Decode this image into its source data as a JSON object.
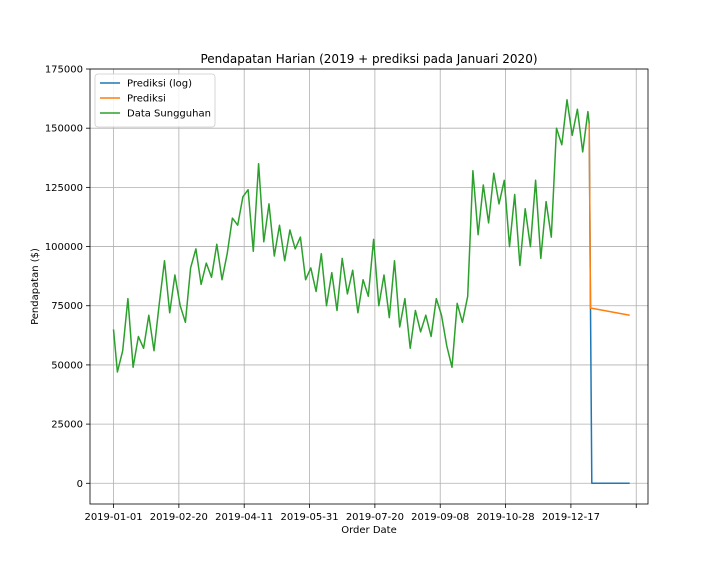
{
  "chart_data": {
    "type": "line",
    "title": "Pendapatan Harian (2019 + prediksi pada Januari 2020)",
    "xlabel": "Order Date",
    "ylabel": "Pendapatan ($)",
    "xlim": [
      "2018-12-14",
      "2020-02-14"
    ],
    "ylim": [
      -8750,
      175000
    ],
    "x_ticks": [
      "2019-01-01",
      "2019-02-20",
      "2019-04-11",
      "2019-05-31",
      "2019-07-20",
      "2019-09-08",
      "2019-10-28",
      "2019-12-17",
      "2020-02-05"
    ],
    "x_tick_labels": [
      "2019-01-01",
      "2019-02-20",
      "2019-04-11",
      "2019-05-31",
      "2019-07-20",
      "2019-09-08",
      "2019-10-28",
      "2019-12-17",
      ""
    ],
    "y_ticks": [
      0,
      25000,
      50000,
      75000,
      100000,
      125000,
      150000,
      175000
    ],
    "grid": true,
    "legend_position": "top-left",
    "series": [
      {
        "name": "Prediksi (log)",
        "color": "#1f77b4",
        "x": [
          "2019-12-31",
          "2020-01-01",
          "2020-01-02",
          "2020-01-31"
        ],
        "y": [
          152000,
          74000,
          0,
          0
        ]
      },
      {
        "name": "Prediksi",
        "color": "#ff7f0e",
        "x": [
          "2019-12-31",
          "2020-01-01",
          "2020-01-02",
          "2020-01-31"
        ],
        "y": [
          152000,
          74000,
          73900,
          71000
        ]
      },
      {
        "name": "Data Sungguhan",
        "color": "#2ca02c",
        "x": [
          "2019-01-01",
          "2019-01-04",
          "2019-01-08",
          "2019-01-12",
          "2019-01-16",
          "2019-01-20",
          "2019-01-24",
          "2019-01-28",
          "2019-02-01",
          "2019-02-05",
          "2019-02-09",
          "2019-02-13",
          "2019-02-17",
          "2019-02-21",
          "2019-02-25",
          "2019-03-01",
          "2019-03-05",
          "2019-03-09",
          "2019-03-13",
          "2019-03-17",
          "2019-03-21",
          "2019-03-25",
          "2019-03-29",
          "2019-04-02",
          "2019-04-06",
          "2019-04-10",
          "2019-04-14",
          "2019-04-18",
          "2019-04-22",
          "2019-04-26",
          "2019-04-30",
          "2019-05-04",
          "2019-05-08",
          "2019-05-12",
          "2019-05-16",
          "2019-05-20",
          "2019-05-24",
          "2019-05-28",
          "2019-06-01",
          "2019-06-05",
          "2019-06-09",
          "2019-06-13",
          "2019-06-17",
          "2019-06-21",
          "2019-06-25",
          "2019-06-29",
          "2019-07-03",
          "2019-07-07",
          "2019-07-11",
          "2019-07-15",
          "2019-07-19",
          "2019-07-23",
          "2019-07-27",
          "2019-07-31",
          "2019-08-04",
          "2019-08-08",
          "2019-08-12",
          "2019-08-16",
          "2019-08-20",
          "2019-08-24",
          "2019-08-28",
          "2019-09-01",
          "2019-09-05",
          "2019-09-09",
          "2019-09-13",
          "2019-09-17",
          "2019-09-21",
          "2019-09-25",
          "2019-09-29",
          "2019-10-03",
          "2019-10-07",
          "2019-10-11",
          "2019-10-15",
          "2019-10-19",
          "2019-10-23",
          "2019-10-27",
          "2019-10-31",
          "2019-11-04",
          "2019-11-08",
          "2019-11-12",
          "2019-11-16",
          "2019-11-20",
          "2019-11-24",
          "2019-11-28",
          "2019-12-02",
          "2019-12-06",
          "2019-12-10",
          "2019-12-14",
          "2019-12-18",
          "2019-12-22",
          "2019-12-26",
          "2019-12-30",
          "2019-12-31"
        ],
        "y": [
          65000,
          47000,
          56000,
          78000,
          49000,
          62000,
          57000,
          71000,
          56000,
          76000,
          94000,
          72000,
          88000,
          75000,
          68000,
          91000,
          99000,
          84000,
          93000,
          87000,
          101000,
          86000,
          97000,
          112000,
          109000,
          121000,
          124000,
          98000,
          135000,
          102000,
          118000,
          96000,
          109000,
          94000,
          107000,
          99000,
          104000,
          86000,
          91000,
          81000,
          97000,
          75000,
          89000,
          73000,
          95000,
          80000,
          90000,
          72000,
          86000,
          79000,
          103000,
          75000,
          88000,
          70000,
          94000,
          66000,
          78000,
          57000,
          73000,
          64000,
          71000,
          62000,
          78000,
          71000,
          58000,
          49000,
          76000,
          68000,
          79000,
          132000,
          105000,
          126000,
          110000,
          131000,
          118000,
          128000,
          100000,
          122000,
          92000,
          116000,
          100000,
          128000,
          95000,
          119000,
          104000,
          150000,
          143000,
          162000,
          147000,
          158000,
          140000,
          157000,
          152000
        ]
      }
    ]
  }
}
